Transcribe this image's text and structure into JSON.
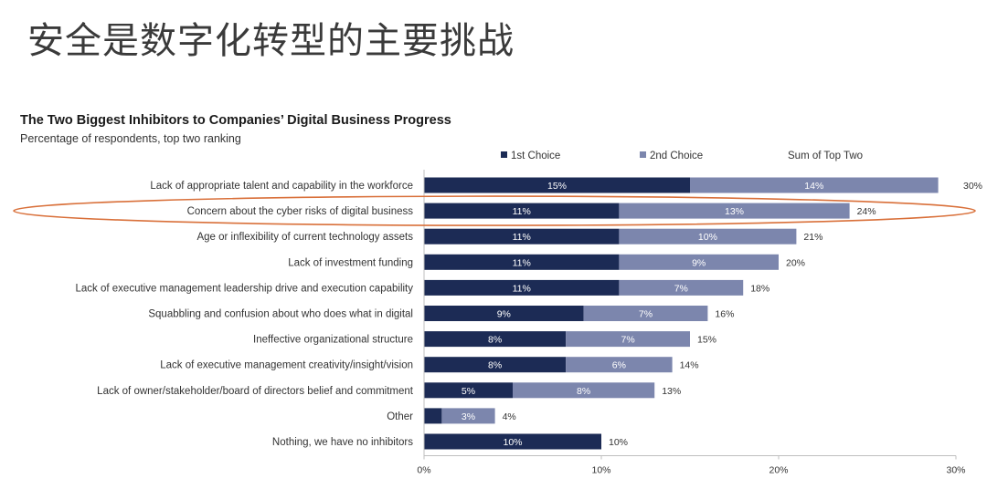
{
  "slide": {
    "title": "安全是数字化转型的主要挑战"
  },
  "chart_data": {
    "type": "bar",
    "orientation": "horizontal",
    "stacked": true,
    "title": "The Two Biggest Inhibitors to Companies’ Digital Business Progress",
    "subtitle": "Percentage of respondents, top two ranking",
    "categories": [
      "Lack of appropriate talent and capability in the workforce",
      "Concern about the cyber risks of digital business",
      "Age or inflexibility of current technology assets",
      "Lack of investment funding",
      "Lack of executive management leadership drive and execution capability",
      "Squabbling and confusion about who does what in digital",
      "Ineffective organizational structure",
      "Lack of executive management creativity/insight/vision",
      "Lack of owner/stakeholder/board of directors belief and commitment",
      "Other",
      "Nothing, we have no inhibitors"
    ],
    "series": [
      {
        "name": "1st Choice",
        "color": "#1c2b55",
        "values": [
          15,
          11,
          11,
          11,
          11,
          9,
          8,
          8,
          5,
          1,
          10
        ]
      },
      {
        "name": "2nd Choice",
        "color": "#7c86ad",
        "values": [
          14,
          13,
          10,
          9,
          7,
          7,
          7,
          6,
          8,
          3,
          0
        ]
      }
    ],
    "first_labels": [
      "15%",
      "11%",
      "11%",
      "11%",
      "11%",
      "9%",
      "8%",
      "8%",
      "5%",
      "",
      "10%"
    ],
    "second_labels": [
      "14%",
      "13%",
      "10%",
      "9%",
      "7%",
      "7%",
      "7%",
      "6%",
      "8%",
      "3%",
      ""
    ],
    "sum_legend": "Sum of Top Two",
    "sum_values": [
      30,
      24,
      21,
      20,
      18,
      16,
      15,
      14,
      13,
      4,
      10
    ],
    "sum_labels": [
      "30%",
      "24%",
      "21%",
      "20%",
      "18%",
      "16%",
      "15%",
      "14%",
      "13%",
      "4%",
      "10%"
    ],
    "x_ticks": [
      0,
      10,
      20,
      30
    ],
    "x_tick_labels": [
      "0%",
      "10%",
      "20%",
      "30%"
    ],
    "xlim": [
      0,
      30
    ],
    "grid": false,
    "legend_position": "top",
    "highlight_category_index": 1,
    "highlight_color": "#d9703a"
  }
}
